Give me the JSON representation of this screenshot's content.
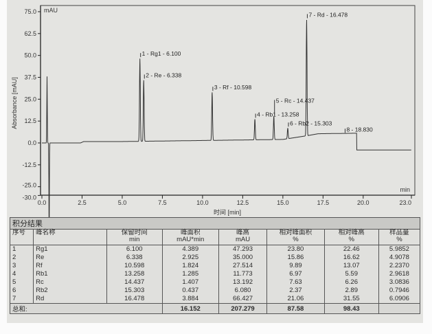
{
  "chart_data": {
    "type": "line",
    "title": "",
    "xlabel": "时间 [min]",
    "ylabel": "Absorbance [mAU]",
    "y_unit_label": "mAU",
    "x_unit_label": "min",
    "xlim": [
      0,
      23
    ],
    "ylim": [
      -30,
      75
    ],
    "xticks": [
      "0.0",
      "2.5",
      "5.0",
      "7.5",
      "10.0",
      "12.5",
      "15.0",
      "17.5",
      "20.0",
      "23.0"
    ],
    "xtick_values": [
      0,
      2.5,
      5,
      7.5,
      10,
      12.5,
      15,
      17.5,
      20,
      23
    ],
    "yticks": [
      "75.0",
      "62.5",
      "50.0",
      "37.5",
      "25.0",
      "12.5",
      "0.0",
      "-12.5",
      "-25.0",
      "-30.0"
    ],
    "ytick_values": [
      75,
      62.5,
      50,
      37.5,
      25,
      12.5,
      0,
      -12.5,
      -25,
      -30
    ],
    "peaks": [
      {
        "label": "1 - Rg1 - 6.100",
        "rt": 6.1,
        "height": 47.3
      },
      {
        "label": "2 - Re - 6.338",
        "rt": 6.338,
        "height": 35.0
      },
      {
        "label": "3 - Rf - 10.598",
        "rt": 10.598,
        "height": 27.5
      },
      {
        "label": "4 - Rb1 - 13.258",
        "rt": 13.258,
        "height": 11.8
      },
      {
        "label": "5 - Rc - 14.437",
        "rt": 14.437,
        "height": 13.2
      },
      {
        "label": "6 - Rb2 - 15.303",
        "rt": 15.303,
        "height": 6.1
      },
      {
        "label": "7 - Rd - 16.478",
        "rt": 16.478,
        "height": 66.4
      },
      {
        "label": "8 - 18.830",
        "rt": 18.83,
        "height": 1.0
      }
    ]
  },
  "table": {
    "title": "积分结果",
    "headers": [
      {
        "name": "序号",
        "unit": ""
      },
      {
        "name": "峰名称",
        "unit": ""
      },
      {
        "name": "保留时间",
        "unit": "min"
      },
      {
        "name": "峰面积",
        "unit": "mAU*min"
      },
      {
        "name": "峰高",
        "unit": "mAU"
      },
      {
        "name": "相对峰面积",
        "unit": "%"
      },
      {
        "name": "相对峰高",
        "unit": "%"
      },
      {
        "name": "样品量",
        "unit": "%"
      }
    ],
    "rows": [
      [
        "1",
        "Rg1",
        "6.100",
        "4.389",
        "47.293",
        "23.80",
        "22.46",
        "5.9852"
      ],
      [
        "2",
        "Re",
        "6.338",
        "2.925",
        "35.000",
        "15.86",
        "16.62",
        "4.9078"
      ],
      [
        "3",
        "Rf",
        "10.598",
        "1.824",
        "27.514",
        "9.89",
        "13.07",
        "2.2370"
      ],
      [
        "4",
        "Rb1",
        "13.258",
        "1.285",
        "11.773",
        "6.97",
        "5.59",
        "2.9618"
      ],
      [
        "5",
        "Rc",
        "14.437",
        "1.407",
        "13.192",
        "7.63",
        "6.26",
        "3.0836"
      ],
      [
        "6",
        "Rb2",
        "15.303",
        "0.437",
        "6.080",
        "2.37",
        "2.89",
        "0.7946"
      ],
      [
        "7",
        "Rd",
        "16.478",
        "3.884",
        "66.427",
        "21.06",
        "31.55",
        "6.0906"
      ]
    ],
    "total": {
      "label": "总和:",
      "area": "16.152",
      "height": "207.279",
      "rel_area": "87.58",
      "rel_height": "98.43"
    }
  }
}
